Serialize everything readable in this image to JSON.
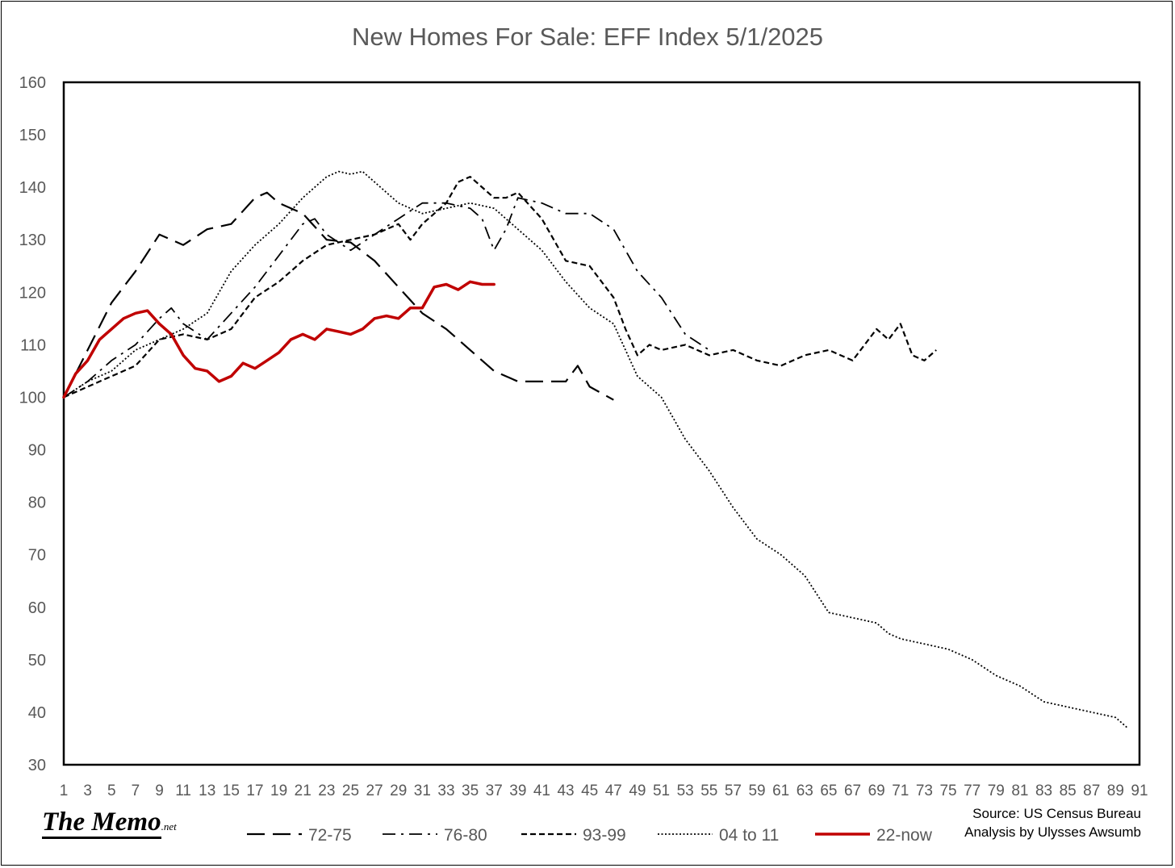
{
  "chart_data": {
    "type": "line",
    "title": "New Homes For Sale: EFF Index 5/1/2025",
    "ylim": [
      30,
      160
    ],
    "yticks": [
      30,
      40,
      50,
      60,
      70,
      80,
      90,
      100,
      110,
      120,
      130,
      140,
      150,
      160
    ],
    "xlim": [
      1,
      91
    ],
    "xticks": [
      1,
      3,
      5,
      7,
      9,
      11,
      13,
      15,
      17,
      19,
      21,
      23,
      25,
      27,
      29,
      31,
      33,
      35,
      37,
      39,
      41,
      43,
      45,
      47,
      49,
      51,
      53,
      55,
      57,
      59,
      61,
      63,
      65,
      67,
      69,
      71,
      73,
      75,
      77,
      79,
      81,
      83,
      85,
      87,
      89,
      91
    ],
    "grid": false,
    "legend_position": "bottom",
    "series": [
      {
        "name": "72-75",
        "style": "long-dash",
        "color": "#000000",
        "x": [
          1,
          3,
          5,
          7,
          9,
          11,
          13,
          15,
          17,
          18,
          19,
          21,
          23,
          25,
          27,
          29,
          31,
          33,
          35,
          37,
          39,
          41,
          43,
          44,
          45,
          47
        ],
        "values": [
          100,
          109,
          118,
          124,
          131,
          129,
          132,
          133,
          138,
          139,
          137,
          135,
          130,
          129.5,
          126,
          121,
          116,
          113,
          109,
          105,
          103,
          103,
          103,
          106,
          102,
          99.5
        ]
      },
      {
        "name": "76-80",
        "style": "dash-dot",
        "color": "#000000",
        "x": [
          1,
          3,
          5,
          7,
          9,
          10,
          11,
          13,
          15,
          17,
          19,
          21,
          22,
          23,
          25,
          27,
          29,
          31,
          33,
          35,
          36,
          37,
          38,
          39,
          41,
          43,
          45,
          47,
          49,
          51,
          53,
          55
        ],
        "values": [
          100,
          103,
          107,
          110,
          115,
          117,
          114,
          111,
          116,
          121,
          127,
          133,
          134,
          131,
          128,
          131,
          134,
          137,
          137,
          136,
          134,
          128,
          132,
          138,
          137,
          135,
          135,
          132,
          124,
          119,
          112,
          109
        ]
      },
      {
        "name": "93-99",
        "style": "short-dash",
        "color": "#000000",
        "x": [
          1,
          3,
          5,
          7,
          9,
          11,
          13,
          15,
          17,
          19,
          21,
          23,
          25,
          27,
          29,
          30,
          31,
          33,
          34,
          35,
          37,
          38,
          39,
          41,
          43,
          45,
          47,
          48,
          49,
          50,
          51,
          53,
          55,
          57,
          59,
          61,
          63,
          65,
          67,
          69,
          70,
          71,
          72,
          73,
          74
        ],
        "values": [
          100,
          102,
          104,
          106,
          111,
          112,
          111,
          113,
          119,
          122,
          126,
          129,
          130,
          131,
          133,
          130,
          133,
          137,
          141,
          142,
          138,
          138,
          139,
          134,
          126,
          125,
          119,
          113,
          108,
          110,
          109,
          110,
          108,
          109,
          107,
          106,
          108,
          109,
          107,
          113,
          111,
          114,
          108,
          107,
          109
        ]
      },
      {
        "name": "04 to 11",
        "style": "dotted",
        "color": "#000000",
        "x": [
          1,
          3,
          5,
          7,
          9,
          11,
          13,
          15,
          17,
          19,
          21,
          23,
          24,
          25,
          26,
          27,
          29,
          31,
          33,
          35,
          37,
          39,
          41,
          43,
          45,
          47,
          49,
          51,
          53,
          55,
          57,
          59,
          61,
          63,
          65,
          67,
          69,
          70,
          71,
          73,
          75,
          77,
          79,
          81,
          83,
          85,
          87,
          89,
          90
        ],
        "values": [
          100,
          103,
          105,
          109,
          111,
          113,
          116,
          124,
          129,
          133,
          138,
          142,
          143,
          142.5,
          143,
          141,
          137,
          135,
          136,
          137,
          136,
          132,
          128,
          122,
          117,
          114,
          104,
          100,
          92,
          86,
          79,
          73,
          70,
          66,
          59,
          58,
          57,
          55,
          54,
          53,
          52,
          50,
          47,
          45,
          42,
          41,
          40,
          39,
          37
        ]
      },
      {
        "name": "22-now",
        "style": "solid",
        "color": "#c00000",
        "x": [
          1,
          2,
          3,
          4,
          5,
          6,
          7,
          8,
          9,
          10,
          11,
          12,
          13,
          14,
          15,
          16,
          17,
          18,
          19,
          20,
          21,
          22,
          23,
          24,
          25,
          26,
          27,
          28,
          29,
          30,
          31,
          32,
          33,
          34,
          35,
          36,
          37
        ],
        "values": [
          100,
          104.5,
          107,
          111,
          113,
          115,
          116,
          116.5,
          114,
          112,
          108,
          105.5,
          105,
          103,
          104,
          106.5,
          105.5,
          107,
          108.5,
          111,
          112,
          111,
          113,
          112.5,
          112,
          113,
          115,
          115.5,
          115,
          117,
          117,
          121,
          121.5,
          120.5,
          122,
          121.5,
          121.5
        ]
      }
    ],
    "annotations": {
      "source": "Source: US Census Bureau",
      "analysis": "Analysis by Ulysses Awsumb"
    }
  },
  "branding": {
    "logo_main": "The Memo",
    "logo_suffix": ".net"
  }
}
